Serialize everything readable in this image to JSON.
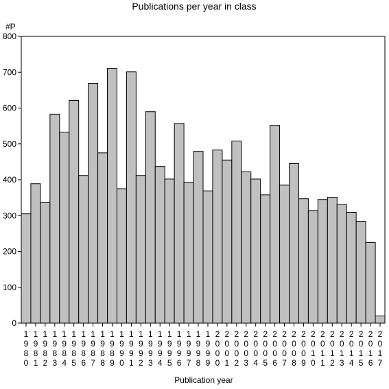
{
  "chart_data": {
    "type": "bar",
    "title": "Publications per year in class",
    "xlabel": "Publication year",
    "ylabel": "#P",
    "ylim": [
      0,
      800
    ],
    "yticks": [
      0,
      100,
      200,
      300,
      400,
      500,
      600,
      700,
      800
    ],
    "categories": [
      "1980",
      "1981",
      "1982",
      "1983",
      "1984",
      "1985",
      "1986",
      "1987",
      "1988",
      "1989",
      "1990",
      "1991",
      "1992",
      "1993",
      "1994",
      "1995",
      "1996",
      "1997",
      "1998",
      "1999",
      "2000",
      "2001",
      "2002",
      "2003",
      "2004",
      "2005",
      "2006",
      "2007",
      "2008",
      "2009",
      "2010",
      "2011",
      "2012",
      "2013",
      "2014",
      "2015",
      "2016",
      "2017"
    ],
    "values": [
      305,
      389,
      336,
      583,
      533,
      621,
      412,
      669,
      475,
      711,
      375,
      701,
      412,
      590,
      437,
      402,
      557,
      393,
      479,
      369,
      483,
      455,
      508,
      422,
      402,
      358,
      552,
      385,
      445,
      347,
      314,
      345,
      351,
      331,
      309,
      284,
      225,
      20
    ],
    "bar_color": "#c0c0c0",
    "grid": false,
    "legend": "none"
  }
}
